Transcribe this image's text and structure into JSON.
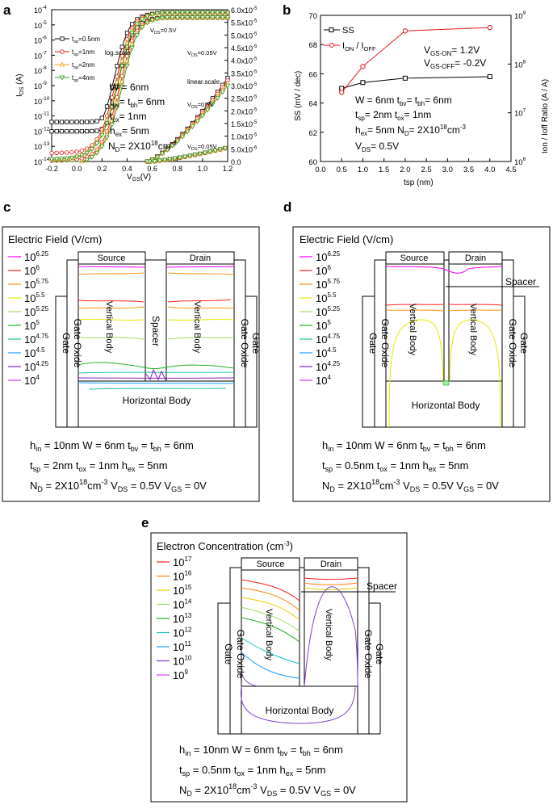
{
  "panels": {
    "a": {
      "letter": "a",
      "chart_data": {
        "type": "line",
        "y_left_label": "IDS (A)",
        "x_label": "VGS(V)",
        "x_ticks": [
          "-0.2",
          "0.0",
          "0.2",
          "0.4",
          "0.6",
          "0.8",
          "1.0",
          "1.2"
        ],
        "y_left_exp": [
          "-4",
          "-5",
          "-6",
          "-7",
          "-8",
          "-9",
          "-10",
          "-11",
          "-12",
          "-13",
          "-14"
        ],
        "y_right_mant": [
          "6.0",
          "5.5",
          "5.0",
          "4.5",
          "4.0",
          "3.5",
          "3.0",
          "2.5",
          "2.0",
          "1.5",
          "1.0",
          "5.0",
          "0.0"
        ],
        "y_right_exp": [
          "-5",
          "-5",
          "-5",
          "-5",
          "-5",
          "-5",
          "-5",
          "-5",
          "-5",
          "-5",
          "-5",
          "-6",
          ""
        ],
        "legend": [
          {
            "text": "t",
            "sub": "sp",
            "val": "=0.5nm",
            "color": "#000000",
            "marker": "square"
          },
          {
            "text": "t",
            "sub": "sp",
            "val": "=1nm",
            "color": "#e8141c",
            "marker": "circle"
          },
          {
            "text": "t",
            "sub": "sp",
            "val": "=2nm",
            "color": "#f0a020",
            "marker": "triangle-up"
          },
          {
            "text": "t",
            "sub": "sp",
            "val": "=4nm",
            "color": "#3a9a1c",
            "marker": "triangle-down"
          }
        ],
        "annotations": {
          "log_scale": "log.scale",
          "linear_scale": "linear.scale",
          "vds05_a": "=0.5V",
          "vds005_a": "=0.05V",
          "vds05_b": "=0.5V",
          "vds005_b": "=0.05V",
          "w": "W = 6nm",
          "tbv_tbh": "= t",
          "tbv_val": "= 6nm",
          "tox": "= 1nm",
          "hex": "= 5nm",
          "nd": "= 2X10",
          "nd_exp": "18",
          "nd_unit": "cm",
          "nd_unit_exp": "-3"
        }
      }
    },
    "b": {
      "letter": "b",
      "chart_data": {
        "type": "line",
        "x": [
          0.5,
          1.0,
          2.0,
          4.0
        ],
        "series": [
          {
            "name": "SS",
            "values": [
              65.0,
              65.4,
              65.7,
              65.8
            ],
            "color": "#000000",
            "axis": "left"
          },
          {
            "name": "ION / IOFF",
            "values_log10": [
              7.42,
              7.95,
              8.68,
              8.75
            ],
            "color": "#e8141c",
            "axis": "right"
          }
        ],
        "xlim": [
          0,
          4.5
        ],
        "ylim_left": [
          60,
          70
        ],
        "ylim_right_log10": [
          6,
          9
        ],
        "x_ticks": [
          "0.0",
          "0.5",
          "1.0",
          "1.5",
          "2.0",
          "2.5",
          "3.0",
          "3.5",
          "4.0",
          "4.5"
        ],
        "y_left_ticks": [
          "60",
          "62",
          "64",
          "66",
          "68",
          "70"
        ],
        "y_right_exp": [
          "6",
          "7",
          "8",
          "9"
        ],
        "y_left_label": "SS (mV / dec)",
        "y_right_label": "Ion / Ioff Ratio (A / A)",
        "x_label": "tsp (nm)",
        "legend_ss": "SS",
        "legend_ratio_a": "I",
        "legend_ratio_sub_a": "ON",
        "legend_ratio_b": " / I",
        "legend_ratio_sub_b": "OFF",
        "vgs_on": "= 1.2V",
        "vgs_off": "= -0.2V",
        "ann1": "W = 6nm t",
        "ann1b": "= t",
        "ann1c": "= 6nm",
        "ann2": "= 2nm t",
        "ann2b": "= 1nm",
        "ann3": "= 5nm N",
        "ann3b": "= 2X10",
        "ann3c": "cm",
        "ann4": "= 0.5V"
      }
    },
    "c": {
      "letter": "c",
      "title": "Electric Field (V/cm)",
      "legend": [
        {
          "base": "10",
          "exp": "6.25",
          "color": "#ff00ff"
        },
        {
          "base": "10",
          "exp": "6",
          "color": "#ff2020"
        },
        {
          "base": "10",
          "exp": "5.75",
          "color": "#ff9010"
        },
        {
          "base": "10",
          "exp": "5.5",
          "color": "#e8e800"
        },
        {
          "base": "10",
          "exp": "5.25",
          "color": "#a0e060"
        },
        {
          "base": "10",
          "exp": "5",
          "color": "#20b020"
        },
        {
          "base": "10",
          "exp": "4.75",
          "color": "#20c0a0"
        },
        {
          "base": "10",
          "exp": "4.5",
          "color": "#20a0ff"
        },
        {
          "base": "10",
          "exp": "4.25",
          "color": "#8020c0"
        },
        {
          "base": "10",
          "exp": "4",
          "color": "#d040f0"
        }
      ],
      "labels": {
        "source": "Source",
        "drain": "Drain",
        "spacer": "Spacer",
        "vbody1": "Vertical Body",
        "vbody2": "Vertical Body",
        "goxide_l": "Gate Oxide",
        "gate_l": "Gate",
        "goxide_r": "Gate Oxide",
        "gate_r": "Gate",
        "hbody": "Horizontal Body"
      },
      "params": [
        "h",
        "in",
        "= 10nm W = 6nm t",
        "bv",
        " = t",
        "bh",
        " = 6nm"
      ],
      "line1": {
        "a": "h",
        "as": "in",
        "b": " = 10nm W = 6nm t",
        "bs": "bv",
        "c": " = t",
        "cs": "bh",
        "d": " = 6nm"
      },
      "line2": {
        "a": "t",
        "as": "sp",
        "b": " = 2nm t",
        "bs": "ox",
        "c": " = 1nm h",
        "cs": "ex",
        "d": " = 5nm"
      },
      "line3": {
        "a": "N",
        "as": "D",
        "b": " = 2X10",
        "bsup": "18",
        "c": "cm",
        "csup": "-3",
        "d": " V",
        "ds": "DS",
        "e": " = 0.5V V",
        "es": "GS",
        "f": " = 0V"
      }
    },
    "d": {
      "letter": "d",
      "title": "Electric Field (V/cm)",
      "labels": {
        "source": "Source",
        "drain": "Drain",
        "spacer": "Spacer",
        "vbody1": "Vertical Body",
        "vbody2": "Vertical Body",
        "goxide_l": "Gate Oxide",
        "gate_l": "Gate",
        "goxide_r": "Gate Oxide",
        "gate_r": "Gate",
        "hbody": "Horizontal Body"
      },
      "line1": {
        "a": "h",
        "as": "in",
        "b": " = 10nm W = 6nm t",
        "bs": "bv",
        "c": " = t",
        "cs": "bh",
        "d": " = 6nm"
      },
      "line2": {
        "a": "t",
        "as": "sp",
        "b": " = 0.5nm t",
        "bs": "ox",
        "c": " = 1nm h",
        "cs": "ex",
        "d": " = 5nm"
      },
      "line3": {
        "a": "N",
        "as": "D",
        "b": " = 2X10",
        "bsup": "18",
        "c": "cm",
        "csup": "-3",
        "d": " V",
        "ds": "DS",
        "e": " = 0.5V V",
        "es": "GS",
        "f": " = 0V"
      }
    },
    "e": {
      "letter": "e",
      "title": "Electron Concentration (cm",
      "title_sup": "-3",
      "title_end": ")",
      "legend": [
        {
          "base": "10",
          "exp": "17",
          "color": "#ff2020"
        },
        {
          "base": "10",
          "exp": "16",
          "color": "#ff8010"
        },
        {
          "base": "10",
          "exp": "15",
          "color": "#e8d000"
        },
        {
          "base": "10",
          "exp": "14",
          "color": "#a0e060"
        },
        {
          "base": "10",
          "exp": "13",
          "color": "#20b020"
        },
        {
          "base": "10",
          "exp": "12",
          "color": "#20c0c0"
        },
        {
          "base": "10",
          "exp": "11",
          "color": "#20a0ff"
        },
        {
          "base": "10",
          "exp": "10",
          "color": "#8040d0"
        },
        {
          "base": "10",
          "exp": "9",
          "color": "#d040f0"
        }
      ],
      "labels": {
        "source": "Source",
        "drain": "Drain",
        "spacer": "Spacer",
        "vbody1": "Vertical Body",
        "vbody2": "Vertical Body",
        "goxide_l": "Gate Oxide",
        "gate_l": "Gate",
        "goxide_r": "Gate Oxide",
        "gate_r": "Gate",
        "hbody": "Horizontal Body"
      },
      "line1": {
        "a": "h",
        "as": "in",
        "b": " = 10nm W = 6nm t",
        "bs": "bv",
        "c": " = t",
        "cs": "bh",
        "d": " = 6nm"
      },
      "line2": {
        "a": "t",
        "as": "sp",
        "b": " = 0.5nm t",
        "bs": "ox",
        "c": " = 1nm h",
        "cs": "ex",
        "d": " = 5nm"
      },
      "line3": {
        "a": "N",
        "as": "D",
        "b": " = 2X10",
        "bsup": "18",
        "c": "cm",
        "csup": "-3",
        "d": " V",
        "ds": "DS",
        "e": " = 0.5V V",
        "es": "GS",
        "f": " = 0V"
      }
    }
  }
}
